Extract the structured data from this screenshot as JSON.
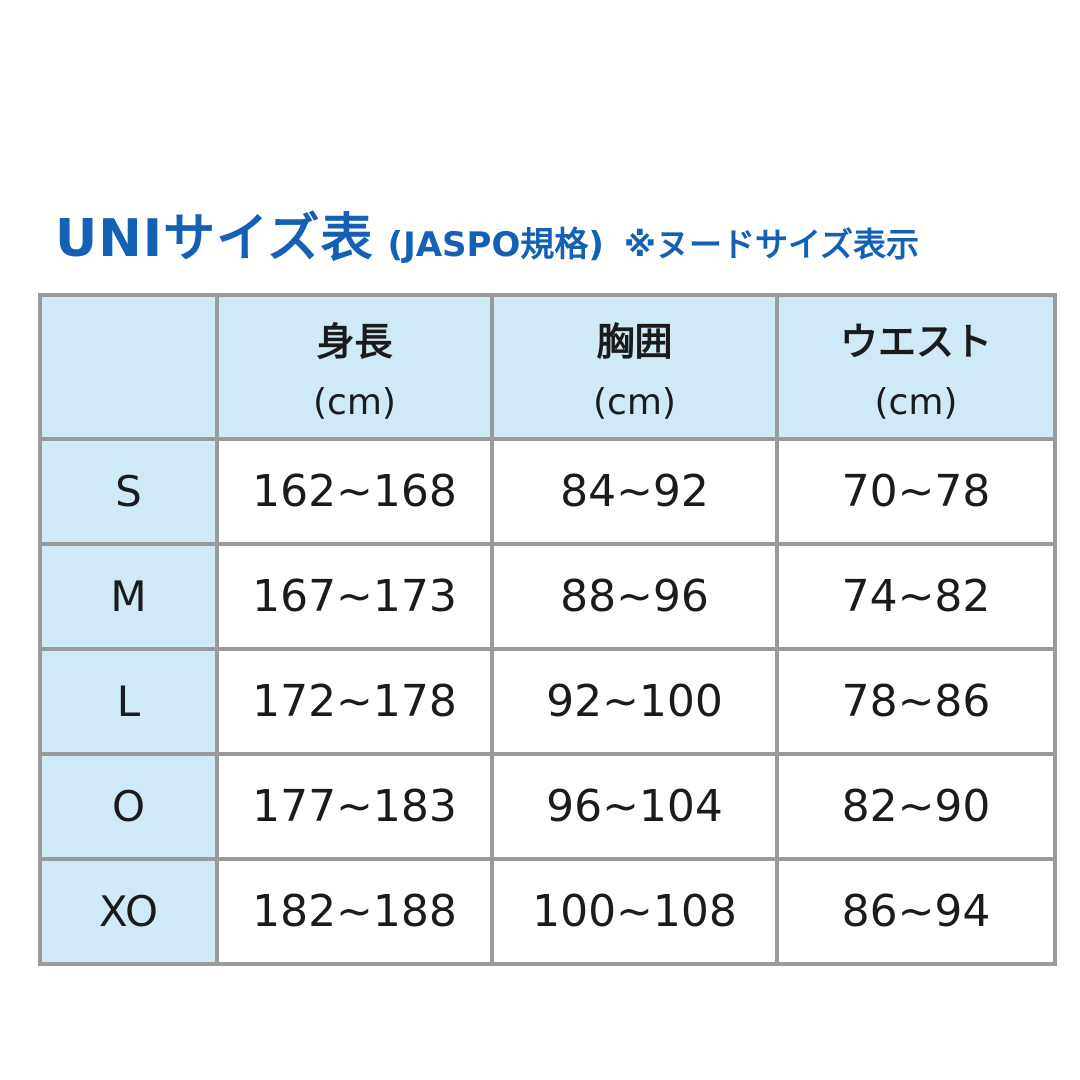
{
  "title": {
    "main": "UNIサイズ表",
    "sub": "(JASPO規格)",
    "note": "※ヌードサイズ表示"
  },
  "table": {
    "corner": "",
    "unit": "(cm)",
    "columns": [
      "身長",
      "胸囲",
      "ウエスト"
    ],
    "rows": [
      {
        "size": "S",
        "height": "162~168",
        "chest": "84~92",
        "waist": "70~78"
      },
      {
        "size": "M",
        "height": "167~173",
        "chest": "88~96",
        "waist": "74~82"
      },
      {
        "size": "L",
        "height": "172~178",
        "chest": "92~100",
        "waist": "78~86"
      },
      {
        "size": "O",
        "height": "177~183",
        "chest": "96~104",
        "waist": "82~90"
      },
      {
        "size": "XO",
        "height": "182~188",
        "chest": "100~108",
        "waist": "86~94"
      }
    ]
  },
  "colors": {
    "accent_blue": "#1460b5",
    "cell_blue": "#cfe9f7",
    "border_gray": "#9a9a9a",
    "text_dark": "#1b1b1b"
  }
}
